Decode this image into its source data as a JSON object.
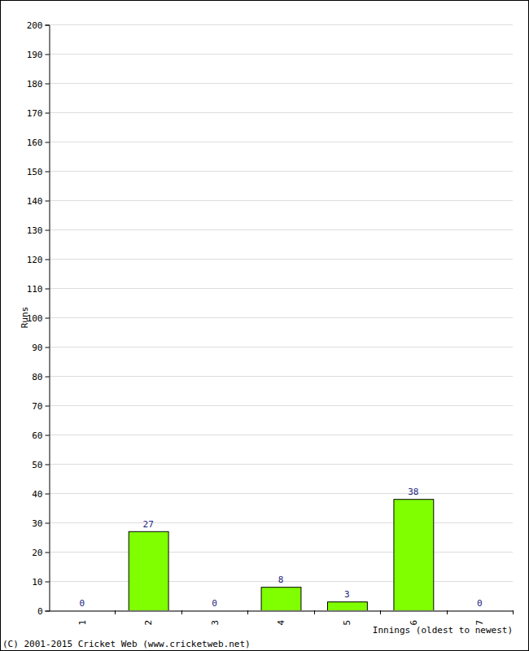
{
  "chart_data": {
    "type": "bar",
    "x_label": "Innings (oldest to newest)",
    "y_label": "Runs",
    "annotations": [
      "(C) 2001-2015 Cricket Web (www.cricketweb.net)"
    ],
    "categories": [
      "1",
      "2",
      "3",
      "4",
      "5",
      "6",
      "7"
    ],
    "values": [
      0,
      27,
      0,
      8,
      3,
      38,
      0
    ],
    "color": "#80ff00",
    "ylim": [
      0,
      200
    ],
    "yticks": [
      0,
      10,
      20,
      30,
      40,
      50,
      60,
      70,
      80,
      90,
      100,
      110,
      120,
      130,
      140,
      150,
      160,
      170,
      180,
      190,
      200
    ],
    "grid": true,
    "data_labels": true
  }
}
